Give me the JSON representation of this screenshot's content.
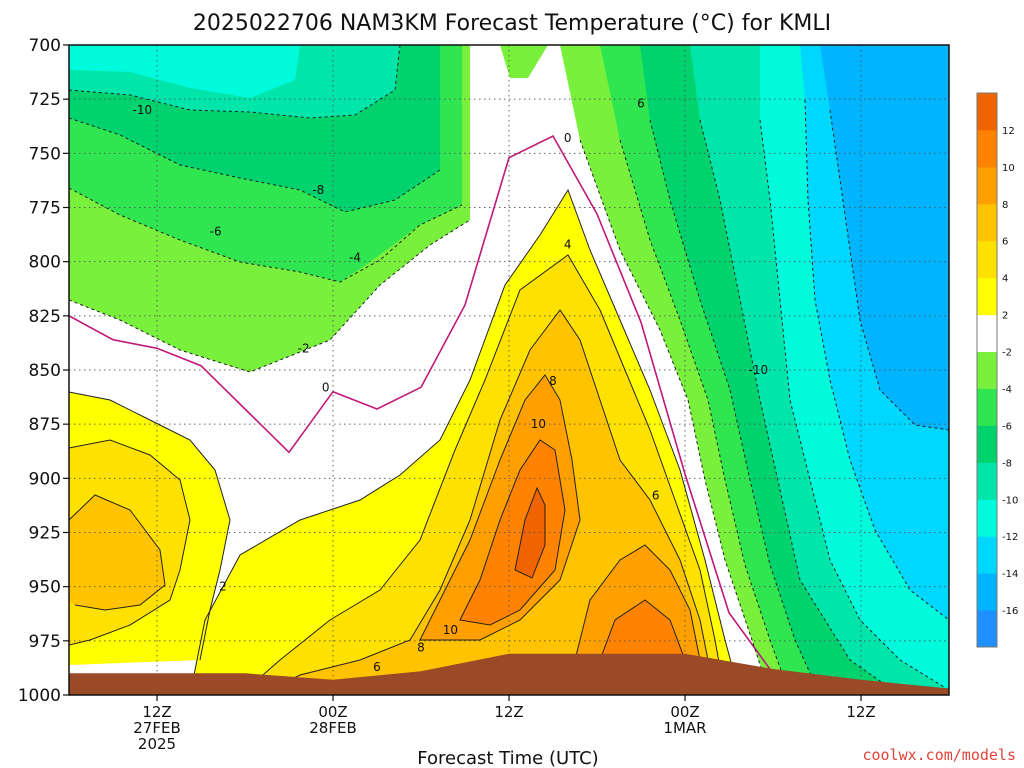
{
  "chart_data": {
    "type": "heatmap",
    "title": "2025022706 NAM3KM Forecast Temperature (°C) for KMLI",
    "xlabel": "Forecast Time (UTC)",
    "ylabel": "",
    "credit": "coolwx.com/models",
    "y_axis": {
      "scale": "linear-pressure-inverted",
      "range": [
        700,
        1000
      ],
      "ticks": [
        700,
        725,
        750,
        775,
        800,
        825,
        850,
        875,
        900,
        925,
        950,
        975,
        1000
      ]
    },
    "x_axis": {
      "range": [
        "2025-02-27T06:00Z",
        "2025-03-01T18:00Z"
      ],
      "ticks": [
        {
          "time": "2025-02-27T12:00Z",
          "lines": [
            "12Z",
            "27FEB",
            "2025"
          ]
        },
        {
          "time": "2025-02-28T00:00Z",
          "lines": [
            "00Z",
            "28FEB"
          ]
        },
        {
          "time": "2025-02-28T12:00Z",
          "lines": [
            "12Z"
          ]
        },
        {
          "time": "2025-03-01T00:00Z",
          "lines": [
            "00Z",
            "1MAR"
          ]
        },
        {
          "time": "2025-03-01T12:00Z",
          "lines": [
            "12Z"
          ]
        }
      ]
    },
    "grid": true,
    "colorbar": {
      "position": "right",
      "bounds": [
        -18,
        -16,
        -14,
        -12,
        -10,
        -8,
        -6,
        -4,
        -2,
        2,
        4,
        6,
        8,
        10,
        12,
        14
      ],
      "colors": [
        "#1e90ff",
        "#00b4ff",
        "#00d7ff",
        "#00fadc",
        "#00e6aa",
        "#00d26e",
        "#2fe650",
        "#78f03c",
        "#ffffff",
        "#ffff00",
        "#ffe100",
        "#ffc300",
        "#ffa000",
        "#ff8200",
        "#f06400"
      ],
      "labels": [
        -16,
        -14,
        -12,
        -10,
        -8,
        -6,
        -4,
        -2,
        2,
        4,
        6,
        8,
        10,
        12
      ]
    },
    "contour_labels": [
      {
        "value": "-10",
        "time": "2025-02-27T11:00Z",
        "p": 730
      },
      {
        "value": "-8",
        "time": "2025-02-27T23:00Z",
        "p": 767
      },
      {
        "value": "-6",
        "time": "2025-02-27T16:00Z",
        "p": 786
      },
      {
        "value": "-4",
        "time": "2025-02-28T01:30Z",
        "p": 798
      },
      {
        "value": "-2",
        "time": "2025-02-27T22:00Z",
        "p": 840
      },
      {
        "value": "0",
        "time": "2025-02-27T23:30Z",
        "p": 858
      },
      {
        "value": "2",
        "time": "2025-02-27T16:30Z",
        "p": 950
      },
      {
        "value": "0",
        "time": "2025-02-28T16:00Z",
        "p": 743
      },
      {
        "value": "4",
        "time": "2025-02-28T16:00Z",
        "p": 792
      },
      {
        "value": "8",
        "time": "2025-02-28T15:00Z",
        "p": 855
      },
      {
        "value": "10",
        "time": "2025-02-28T14:00Z",
        "p": 875
      },
      {
        "value": "6",
        "time": "2025-02-28T22:00Z",
        "p": 908
      },
      {
        "value": "10",
        "time": "2025-02-28T08:00Z",
        "p": 970
      },
      {
        "value": "8",
        "time": "2025-02-28T06:00Z",
        "p": 978
      },
      {
        "value": "6",
        "time": "2025-02-28T03:00Z",
        "p": 987
      },
      {
        "value": "6",
        "time": "2025-02-28T21:00Z",
        "p": 727
      },
      {
        "value": "-10",
        "time": "2025-03-01T05:00Z",
        "p": 850
      }
    ],
    "series": [
      {
        "name": "0 isotherm",
        "level": 0,
        "time": [
          "2025-02-27T06:00Z",
          "2025-02-27T09:00Z",
          "2025-02-27T12:00Z",
          "2025-02-27T15:00Z",
          "2025-02-27T18:00Z",
          "2025-02-27T21:00Z",
          "2025-02-28T00:00Z",
          "2025-02-28T03:00Z",
          "2025-02-28T06:00Z",
          "2025-02-28T09:00Z",
          "2025-02-28T12:00Z",
          "2025-02-28T15:00Z",
          "2025-02-28T18:00Z",
          "2025-02-28T21:00Z",
          "2025-03-01T00:00Z",
          "2025-03-01T03:00Z",
          "2025-03-01T06:00Z"
        ],
        "pressure": [
          825,
          836,
          840,
          848,
          868,
          888,
          860,
          868,
          858,
          820,
          752,
          742,
          778,
          828,
          898,
          962,
          990
        ]
      },
      {
        "name": "surface",
        "time": [
          "2025-02-27T06:00Z",
          "2025-02-27T18:00Z",
          "2025-02-28T00:00Z",
          "2025-02-28T06:00Z",
          "2025-02-28T12:00Z",
          "2025-02-28T18:00Z",
          "2025-03-01T00:00Z",
          "2025-03-01T06:00Z",
          "2025-03-01T12:00Z",
          "2025-03-01T18:00Z"
        ],
        "pressure": [
          990,
          990,
          993,
          989,
          981,
          981,
          981,
          988,
          993,
          997
        ]
      }
    ]
  }
}
